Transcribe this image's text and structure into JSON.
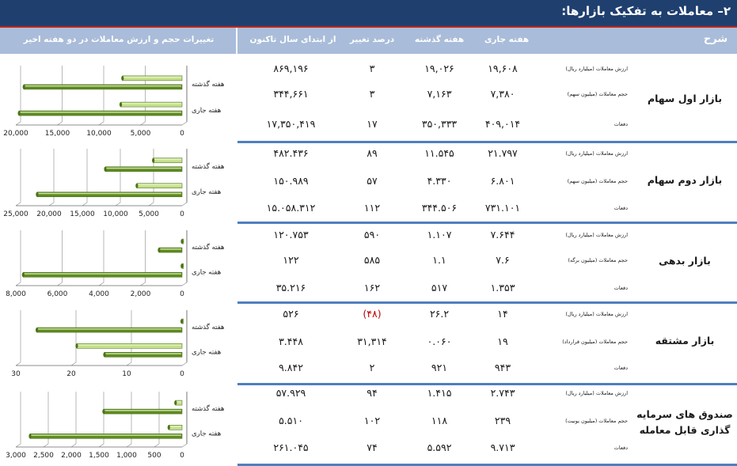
{
  "page_title": "۲– معاملات به تفکیک بازارها:",
  "headers": {
    "description": "شرح",
    "current_week": "هفته جاری",
    "previous_week": "هفته گذشته",
    "percent_change": "درصد تغییر",
    "since_year_start": "از ابتدای سال تاکنون",
    "chart_header": "تغییرات حجم و ارزش معاملات در دو هفته اخیر"
  },
  "colors": {
    "header_bg": "#1f3f6e",
    "subheader_bg": "#a9bcd9",
    "separator": "#4f7fbf",
    "bar_dark": "#5e8c1f",
    "bar_light": "#c4df8a",
    "negative": "#c00000"
  },
  "markets": [
    {
      "name": "بازار اول سهام",
      "rows": [
        {
          "label": "ارزش معاملات (میلیارد ریال)",
          "current": "۱۹,۶۰۸",
          "previous": "۱۹,۰۲۶",
          "pct": "۳",
          "ytd": "۸۶۹,۱۹۶"
        },
        {
          "label": "حجم معاملات (میلیون سهم)",
          "current": "۷,۳۸۰",
          "previous": "۷,۱۶۳",
          "pct": "۳",
          "ytd": "۳۴۴,۶۶۱"
        },
        {
          "label": "دفعات",
          "current": "۴۰۹,۰۱۴",
          "previous": "۳۵۰,۳۳۳",
          "pct": "۱۷",
          "ytd": "۱۷,۳۵۰,۴۱۹"
        }
      ]
    },
    {
      "name": "بازار دوم سهام",
      "rows": [
        {
          "label": "ارزش معاملات (میلیارد ریال)",
          "current": "۲۱.۷۹۷",
          "previous": "۱۱.۵۴۵",
          "pct": "۸۹",
          "ytd": "۴۸۲.۴۳۶"
        },
        {
          "label": "حجم معاملات (میلیون سهم)",
          "current": "۶.۸۰۱",
          "previous": "۴.۳۳۰",
          "pct": "۵۷",
          "ytd": "۱۵۰.۹۸۹"
        },
        {
          "label": "دفعات",
          "current": "۷۳۱.۱۰۱",
          "previous": "۳۴۴.۵۰۶",
          "pct": "۱۱۲",
          "ytd": "۱۵.۰۵۸.۳۱۲"
        }
      ]
    },
    {
      "name": "بازار بدهی",
      "rows": [
        {
          "label": "ارزش معاملات (میلیارد ریال)",
          "current": "۷.۶۴۴",
          "previous": "۱.۱۰۷",
          "pct": "۵۹۰",
          "ytd": "۱۲۰.۷۵۳"
        },
        {
          "label": "حجم معاملات (میلیون برگه)",
          "current": "۷.۶",
          "previous": "۱.۱",
          "pct": "۵۸۵",
          "ytd": "۱۲۲"
        },
        {
          "label": "دفعات",
          "current": "۱.۳۵۳",
          "previous": "۵۱۷",
          "pct": "۱۶۲",
          "ytd": "۳۵.۲۱۶"
        }
      ]
    },
    {
      "name": "بازار مشتقه",
      "rows": [
        {
          "label": "ارزش معاملات (میلیارد ریال)",
          "current": "۱۴",
          "previous": "۲۶.۲",
          "pct": "(۴۸)",
          "pct_negative": true,
          "ytd": "۵۲۶"
        },
        {
          "label": "حجم معاملات (میلیون قرارداد)",
          "current": "۱۹",
          "previous": "۰.۰۶۰",
          "pct": "۳۱,۳۱۴",
          "ytd": "۳.۴۴۸"
        },
        {
          "label": "دفعات",
          "current": "۹۴۳",
          "previous": "۹۲۱",
          "pct": "۲",
          "ytd": "۹.۸۴۲"
        }
      ]
    },
    {
      "name": "صندوق های سرمایه گذاری قابل معامله",
      "rows": [
        {
          "label": "ارزش معاملات (میلیارد ریال)",
          "current": "۲.۷۴۳",
          "previous": "۱.۴۱۵",
          "pct": "۹۴",
          "ytd": "۵۷.۹۲۹"
        },
        {
          "label": "حجم معاملات (میلیون یونیت)",
          "current": "۲۳۹",
          "previous": "۱۱۸",
          "pct": "۱۰۲",
          "ytd": "۵.۵۱۰"
        },
        {
          "label": "دفعات",
          "current": "۹.۷۱۳",
          "previous": "۵.۵۹۲",
          "pct": "۷۴",
          "ytd": "۲۶۱.۰۴۵"
        }
      ]
    }
  ],
  "chart_data": [
    {
      "type": "bar",
      "orientation": "horizontal",
      "title": "بازار اول سهام",
      "categories": [
        "هفته گذشته",
        "هفته جاری"
      ],
      "series": [
        {
          "name": "ارزش معاملات",
          "values": [
            19026,
            19608
          ]
        },
        {
          "name": "حجم معاملات",
          "values": [
            7163,
            7380
          ]
        }
      ],
      "xlim": [
        0,
        20000
      ],
      "ticks": [
        "20,000",
        "15,000",
        "10,000",
        "5,000",
        "0"
      ],
      "tick_values": [
        20000,
        15000,
        10000,
        5000,
        0
      ]
    },
    {
      "type": "bar",
      "orientation": "horizontal",
      "title": "بازار دوم سهام",
      "categories": [
        "هفته گذشته",
        "هفته جاری"
      ],
      "series": [
        {
          "name": "ارزش معاملات",
          "values": [
            11545,
            21797
          ]
        },
        {
          "name": "حجم معاملات",
          "values": [
            4330,
            6801
          ]
        }
      ],
      "xlim": [
        0,
        25000
      ],
      "ticks": [
        "25,000",
        "20,000",
        "15,000",
        "10,000",
        "5,000",
        "0"
      ],
      "tick_values": [
        25000,
        20000,
        15000,
        10000,
        5000,
        0
      ]
    },
    {
      "type": "bar",
      "orientation": "horizontal",
      "title": "بازار بدهی",
      "categories": [
        "هفته گذشته",
        "هفته جاری"
      ],
      "series": [
        {
          "name": "ارزش معاملات",
          "values": [
            1107,
            7644
          ]
        },
        {
          "name": "حجم معاملات",
          "values": [
            1.1,
            7.6
          ]
        }
      ],
      "xlim": [
        0,
        8000
      ],
      "ticks": [
        "8,000",
        "6,000",
        "4,000",
        "2,000",
        "0"
      ],
      "tick_values": [
        8000,
        6000,
        4000,
        2000,
        0
      ]
    },
    {
      "type": "bar",
      "orientation": "horizontal",
      "title": "بازار مشتقه",
      "categories": [
        "هفته گذشته",
        "هفته جاری"
      ],
      "series": [
        {
          "name": "ارزش معاملات",
          "values": [
            26.2,
            14
          ]
        },
        {
          "name": "حجم معاملات",
          "values": [
            0.06,
            19
          ]
        }
      ],
      "xlim": [
        0,
        30
      ],
      "ticks": [
        "30",
        "20",
        "10",
        "0"
      ],
      "tick_values": [
        30,
        20,
        10,
        0
      ]
    },
    {
      "type": "bar",
      "orientation": "horizontal",
      "title": "صندوق های سرمایه گذاری قابل معامله",
      "categories": [
        "هفته گذشته",
        "هفته جاری"
      ],
      "series": [
        {
          "name": "ارزش معاملات",
          "values": [
            1415,
            2743
          ]
        },
        {
          "name": "حجم معاملات",
          "values": [
            118,
            239
          ]
        }
      ],
      "xlim": [
        0,
        3000
      ],
      "ticks": [
        "3,000",
        "2,500",
        "2,000",
        "1,500",
        "1,000",
        "500",
        "0"
      ],
      "tick_values": [
        3000,
        2500,
        2000,
        1500,
        1000,
        500,
        0
      ]
    }
  ]
}
